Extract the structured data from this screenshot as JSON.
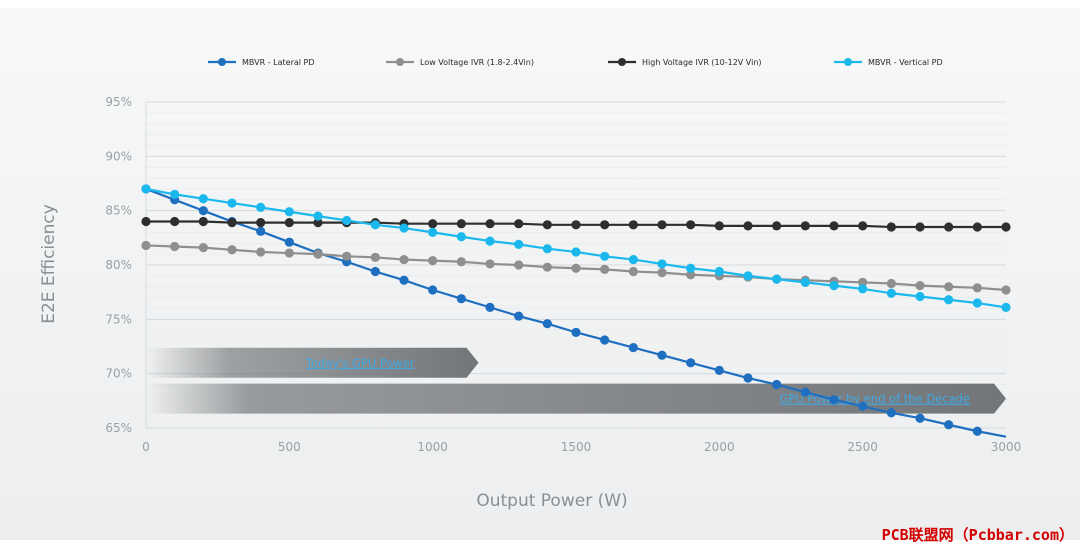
{
  "chart_data": {
    "type": "line",
    "title": "",
    "xlabel": "Output Power (W)",
    "ylabel": "E2E Efficiency",
    "xlim": [
      0,
      3000
    ],
    "ylim": [
      65,
      95
    ],
    "x_ticks": [
      0,
      500,
      1000,
      1500,
      2000,
      2500,
      3000
    ],
    "y_ticks": [
      "65%",
      "70%",
      "75%",
      "80%",
      "85%",
      "90%",
      "95%"
    ],
    "y_tick_values": [
      65,
      70,
      75,
      80,
      85,
      90,
      95
    ],
    "grid": true,
    "legend_position": "top",
    "x": [
      0,
      100,
      200,
      300,
      400,
      500,
      600,
      700,
      800,
      900,
      1000,
      1100,
      1200,
      1300,
      1400,
      1500,
      1600,
      1700,
      1800,
      1900,
      2000,
      2100,
      2200,
      2300,
      2400,
      2500,
      2600,
      2700,
      2800,
      2900,
      3000
    ],
    "series": [
      {
        "name": "MBVR - Lateral PD",
        "color": "#1f6fc0",
        "values": [
          87.0,
          86.0,
          85.0,
          84.0,
          83.1,
          82.1,
          81.1,
          80.3,
          79.4,
          78.6,
          77.7,
          76.9,
          76.1,
          75.3,
          74.6,
          73.8,
          73.1,
          72.4,
          71.7,
          71.0,
          70.3,
          69.6,
          69.0,
          68.3,
          67.6,
          67.0,
          66.4,
          65.9,
          65.3,
          64.7,
          64.2
        ]
      },
      {
        "name": "Low Voltage IVR (1.8-2.4Vin)",
        "color": "#8f8f8f",
        "values": [
          81.8,
          81.7,
          81.6,
          81.4,
          81.2,
          81.1,
          81.0,
          80.8,
          80.7,
          80.5,
          80.4,
          80.3,
          80.1,
          80.0,
          79.8,
          79.7,
          79.6,
          79.4,
          79.3,
          79.1,
          79.0,
          78.9,
          78.7,
          78.6,
          78.5,
          78.4,
          78.3,
          78.1,
          78.0,
          77.9,
          77.7
        ]
      },
      {
        "name": "High Voltage IVR (10-12V Vin)",
        "color": "#2e2e2e",
        "values": [
          84.0,
          84.0,
          84.0,
          83.9,
          83.9,
          83.9,
          83.9,
          83.9,
          83.9,
          83.8,
          83.8,
          83.8,
          83.8,
          83.8,
          83.7,
          83.7,
          83.7,
          83.7,
          83.7,
          83.7,
          83.6,
          83.6,
          83.6,
          83.6,
          83.6,
          83.6,
          83.5,
          83.5,
          83.5,
          83.5,
          83.5
        ]
      },
      {
        "name": "MBVR - Vertical PD",
        "color": "#1bb8ee",
        "values": [
          87.0,
          86.5,
          86.1,
          85.7,
          85.3,
          84.9,
          84.5,
          84.1,
          83.7,
          83.4,
          83.0,
          82.6,
          82.2,
          81.9,
          81.5,
          81.2,
          80.8,
          80.5,
          80.1,
          79.7,
          79.4,
          79.0,
          78.7,
          78.4,
          78.1,
          77.8,
          77.4,
          77.1,
          76.8,
          76.5,
          76.1
        ]
      }
    ],
    "annotations": [
      {
        "label": "Today's GPU Power",
        "x_start": 0,
        "x_end": 1160,
        "y": 71.0
      },
      {
        "label": "GPU Power by end of the Decade",
        "x_start": 0,
        "x_end": 3000,
        "y": 67.7
      }
    ]
  },
  "watermark": "PCB联盟网（Pcbbar.com）"
}
